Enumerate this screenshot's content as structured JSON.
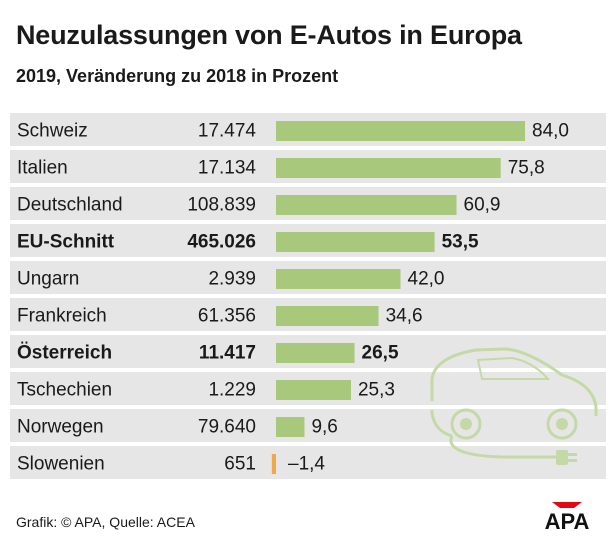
{
  "header": {
    "title": "Neuzulassungen von E-Autos in Europa",
    "subtitle": "2019, Veränderung zu 2018 in Prozent"
  },
  "chart_data": {
    "type": "bar",
    "orientation": "horizontal",
    "title": "Neuzulassungen von E-Autos in Europa",
    "subtitle": "2019, Veränderung zu 2018 in Prozent",
    "value_unit": "Prozent",
    "categories": [
      "Schweiz",
      "Italien",
      "Deutschland",
      "EU-Schnitt",
      "Ungarn",
      "Frankreich",
      "Österreich",
      "Tschechien",
      "Norwegen",
      "Slowenien"
    ],
    "registrations": [
      "17.474",
      "17.134",
      "108.839",
      "465.026",
      "2.939",
      "61.356",
      "11.417",
      "1.229",
      "79.640",
      "651"
    ],
    "values": [
      84.0,
      75.8,
      60.9,
      53.5,
      42.0,
      34.6,
      26.5,
      25.3,
      9.6,
      -1.4
    ],
    "value_labels": [
      "84,0",
      "75,8",
      "60,9",
      "53,5",
      "42,0",
      "34,6",
      "26,5",
      "25,3",
      "9,6",
      "–1,4"
    ],
    "highlighted": [
      "EU-Schnitt",
      "Österreich"
    ],
    "xlim": [
      -1.4,
      84.0
    ],
    "colors": {
      "positive": "#a8c87c",
      "negative": "#f0a84a",
      "row_background": "#e6e6e6",
      "illustration": "#c5d9a6"
    }
  },
  "footer": {
    "source": "Grafik: © APA, Quelle: ACEA"
  },
  "logo": {
    "text": "APA",
    "color": "#e30613"
  }
}
